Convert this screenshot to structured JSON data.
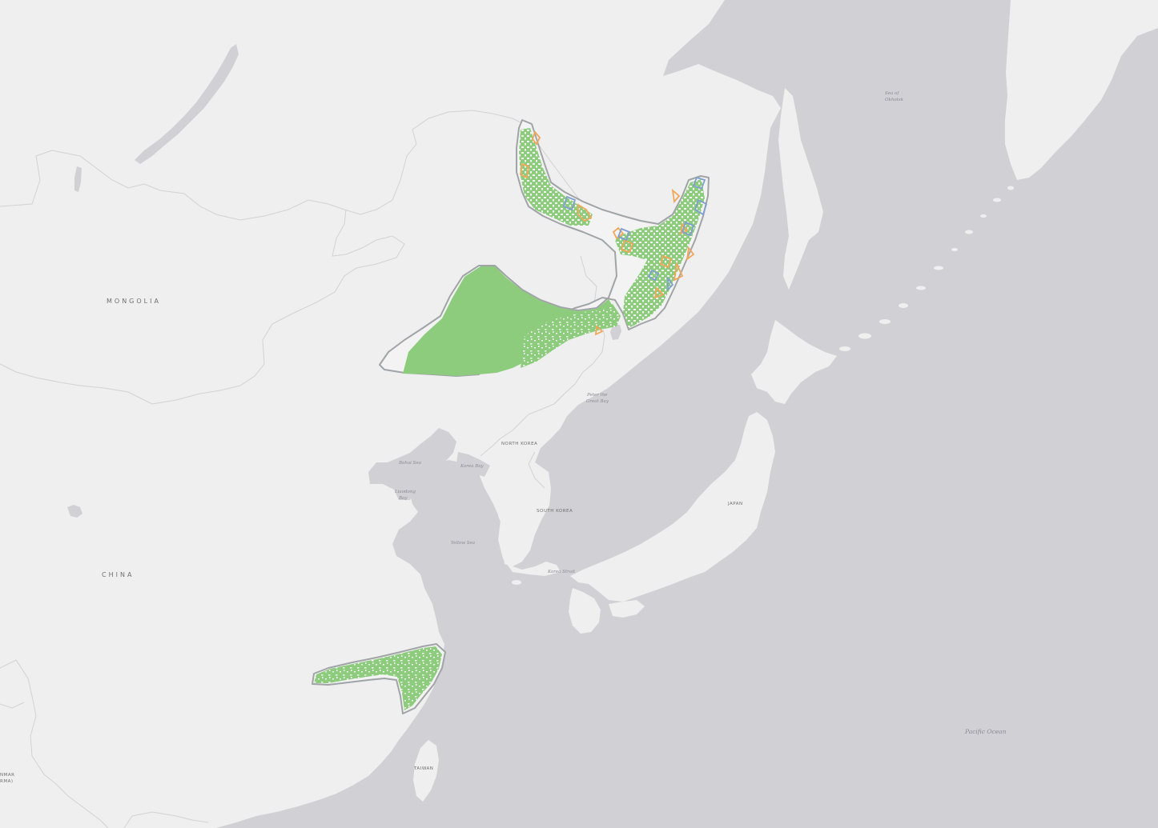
{
  "map": {
    "basemap": "light-gray-canvas",
    "colors": {
      "water": "#d1d0d4",
      "land": "#efefef",
      "border": "#d2d2d2",
      "range_fill": "#8ccc7c",
      "range_outline": "#a0a4a6",
      "feature_orange": "#f2a65a",
      "feature_blue": "#7f9fd0"
    },
    "labels": {
      "mongolia": "MONGOLIA",
      "china": "CHINA",
      "north_korea": "NORTH KOREA",
      "south_korea": "SOUTH KOREA",
      "japan": "JAPAN",
      "taiwan": "TAIWAN",
      "myanmar_1": "NMAR",
      "myanmar_2": "RMA)",
      "sea_of_okhotsk_1": "Sea of",
      "sea_of_okhotsk_2": "Okhotsk",
      "peter_great_bay_1": "Peter the",
      "peter_great_bay_2": "Great Bay",
      "bohai_sea": "Bohai Sea",
      "korea_bay": "Korea Bay",
      "liaodong_bay_1": "Liaodong",
      "liaodong_bay_2": "Bay",
      "yellow_sea": "Yellow Sea",
      "korea_strait": "Korea Strait",
      "pacific_ocean": "Pacific Ocean"
    }
  }
}
